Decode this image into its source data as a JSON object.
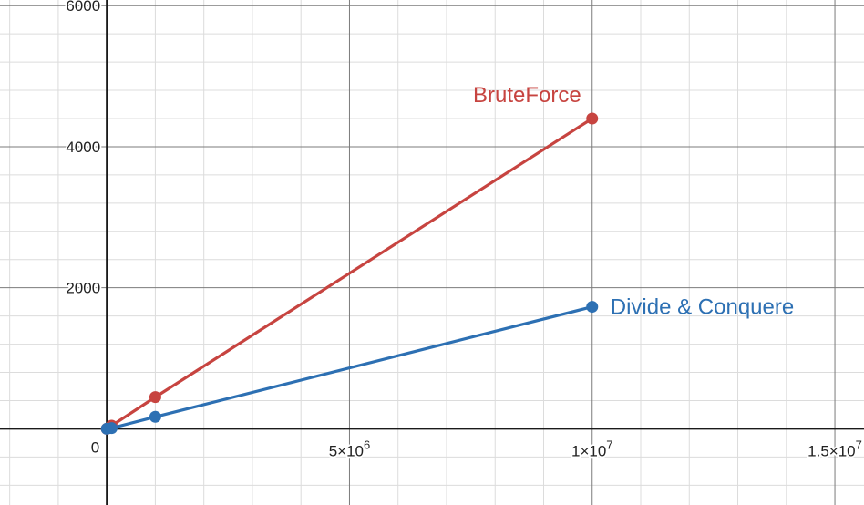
{
  "chart_data": {
    "type": "line",
    "xlim": [
      -2200000,
      15600000
    ],
    "ylim": [
      -1080,
      6080
    ],
    "grid": true,
    "x_ticks": [
      {
        "value": 5000000,
        "base": "5×10",
        "exp": "6"
      },
      {
        "value": 10000000,
        "base": "1×10",
        "exp": "7"
      },
      {
        "value": 15000000,
        "base": "1.5×10",
        "exp": "7"
      }
    ],
    "y_ticks": [
      {
        "value": 2000,
        "label": "2000"
      },
      {
        "value": 4000,
        "label": "4000"
      },
      {
        "value": 6000,
        "label": "6000"
      }
    ],
    "origin_label": "0",
    "series": [
      {
        "name": "BruteForce",
        "color": "#c74440",
        "x": [
          0,
          100000,
          1000000,
          10000000
        ],
        "y": [
          0,
          44,
          450,
          4400
        ]
      },
      {
        "name": "Divide & Conquere",
        "color": "#2d70b3",
        "x": [
          0,
          100000,
          1000000,
          10000000
        ],
        "y": [
          0,
          10,
          170,
          1730
        ]
      }
    ]
  }
}
